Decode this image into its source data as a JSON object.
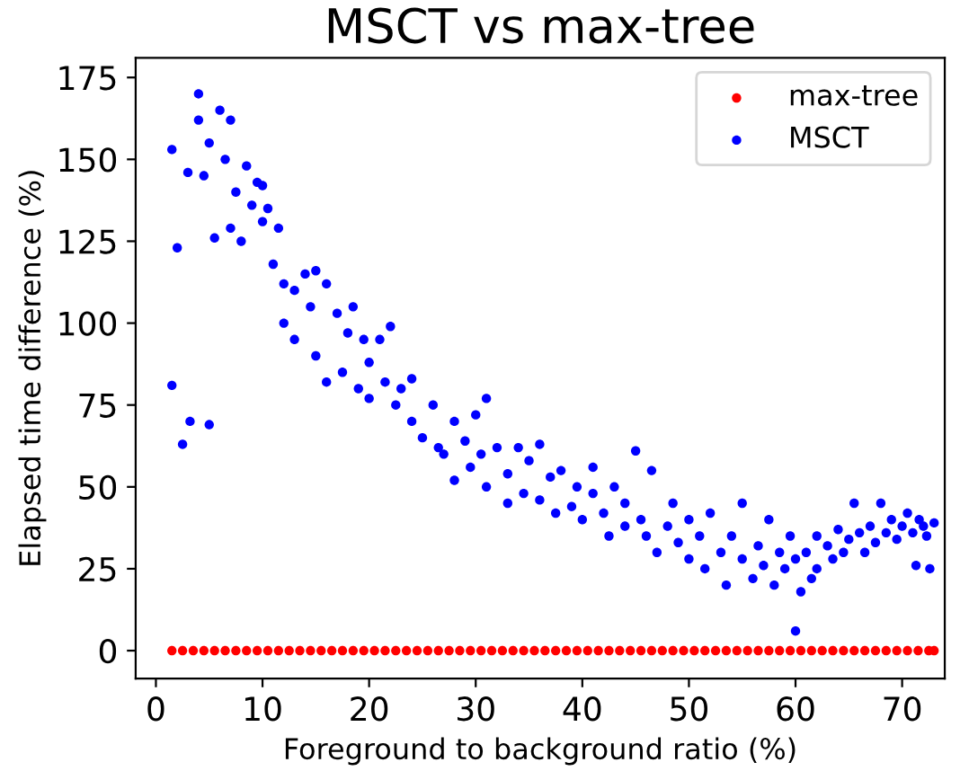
{
  "chart_data": {
    "type": "scatter",
    "title": "MSCT vs max-tree",
    "xlabel": "Foreground to background ratio (%)",
    "ylabel": "Elapsed time difference (%)",
    "xlim": [
      -1.9,
      74.0
    ],
    "ylim": [
      -8.5,
      181
    ],
    "xticks": [
      0,
      10,
      20,
      30,
      40,
      50,
      60,
      70
    ],
    "yticks": [
      0,
      25,
      50,
      75,
      100,
      125,
      150,
      175
    ],
    "legend": "top right",
    "grid": false,
    "marker": "circle",
    "series": [
      {
        "name": "max-tree",
        "color": "#ff0000",
        "x": [
          1.5,
          2.5,
          3.5,
          4.5,
          5.5,
          6.5,
          7.5,
          8.5,
          9.5,
          10.5,
          11.5,
          12.5,
          13.5,
          14.5,
          15.5,
          16.5,
          17.5,
          18.5,
          19.5,
          20.5,
          21.5,
          22.5,
          23.5,
          24.5,
          25.5,
          26.5,
          27.5,
          28.5,
          29.5,
          30.5,
          31.5,
          32.5,
          33.5,
          34.5,
          35.5,
          36.5,
          37.5,
          38.5,
          39.5,
          40.5,
          41.5,
          42.5,
          43.5,
          44.5,
          45.5,
          46.5,
          47.5,
          48.5,
          49.5,
          50.5,
          51.5,
          52.5,
          53.5,
          54.5,
          55.5,
          56.5,
          57.5,
          58.5,
          59.5,
          60.5,
          61.5,
          62.5,
          63.5,
          64.5,
          65.5,
          66.5,
          67.5,
          68.5,
          69.5,
          70.5,
          71.5,
          72.5,
          73
        ],
        "values": [
          0,
          0,
          0,
          0,
          0,
          0,
          0,
          0,
          0,
          0,
          0,
          0,
          0,
          0,
          0,
          0,
          0,
          0,
          0,
          0,
          0,
          0,
          0,
          0,
          0,
          0,
          0,
          0,
          0,
          0,
          0,
          0,
          0,
          0,
          0,
          0,
          0,
          0,
          0,
          0,
          0,
          0,
          0,
          0,
          0,
          0,
          0,
          0,
          0,
          0,
          0,
          0,
          0,
          0,
          0,
          0,
          0,
          0,
          0,
          0,
          0,
          0,
          0,
          0,
          0,
          0,
          0,
          0,
          0,
          0,
          0,
          0,
          0
        ]
      },
      {
        "name": "MSCT",
        "color": "#0000ff",
        "x": [
          1.5,
          1.5,
          2,
          2.5,
          3,
          3.2,
          4,
          4,
          4.5,
          5,
          5,
          5.5,
          6,
          6.5,
          7,
          7,
          7.5,
          8,
          8.5,
          9,
          9.5,
          10,
          10,
          10.5,
          11,
          11.5,
          12,
          12,
          13,
          13,
          14,
          14.5,
          15,
          15,
          16,
          16,
          17,
          17.5,
          18,
          18.5,
          19,
          19.5,
          20,
          20,
          21,
          21.5,
          22,
          22.5,
          23,
          24,
          24,
          25,
          26,
          26.5,
          27,
          28,
          28,
          29,
          29.5,
          30,
          30.5,
          31,
          31,
          32,
          33,
          33,
          34,
          34.5,
          35,
          36,
          36,
          37,
          37.5,
          38,
          39,
          39.5,
          40,
          41,
          41,
          42,
          42.5,
          43,
          44,
          44,
          45,
          45.5,
          46,
          46.5,
          47,
          48,
          48.5,
          49,
          50,
          50,
          51,
          51.5,
          52,
          53,
          53.5,
          54,
          55,
          55,
          56,
          56.5,
          57,
          57.5,
          58,
          58.5,
          59,
          59.5,
          60,
          60,
          60.5,
          61,
          61.5,
          62,
          62,
          63,
          63.5,
          64,
          64.5,
          65,
          65.5,
          66,
          66.5,
          67,
          67.5,
          68,
          68.5,
          69,
          69.5,
          70,
          70.5,
          71,
          71.3,
          71.6,
          72,
          72.3,
          72.6,
          73
        ],
        "values": [
          153,
          81,
          123,
          63,
          146,
          70,
          170,
          162,
          145,
          155,
          69,
          126,
          165,
          150,
          162,
          129,
          140,
          125,
          148,
          136,
          143,
          142,
          131,
          135,
          118,
          129,
          112,
          100,
          110,
          95,
          115,
          105,
          116,
          90,
          112,
          82,
          103,
          85,
          97,
          105,
          80,
          95,
          88,
          77,
          95,
          82,
          99,
          75,
          80,
          70,
          83,
          65,
          75,
          62,
          60,
          70,
          52,
          64,
          56,
          72,
          60,
          50,
          77,
          62,
          54,
          45,
          62,
          48,
          58,
          46,
          63,
          53,
          42,
          55,
          44,
          50,
          40,
          48,
          56,
          42,
          35,
          50,
          38,
          45,
          61,
          40,
          35,
          55,
          30,
          38,
          45,
          33,
          28,
          40,
          35,
          25,
          42,
          30,
          20,
          35,
          28,
          45,
          22,
          32,
          26,
          40,
          20,
          30,
          25,
          35,
          6,
          28,
          18,
          30,
          22,
          35,
          25,
          32,
          28,
          37,
          30,
          34,
          45,
          36,
          30,
          38,
          33,
          45,
          36,
          40,
          34,
          38,
          42,
          36,
          26,
          40,
          38,
          35,
          25,
          39
        ]
      }
    ]
  }
}
